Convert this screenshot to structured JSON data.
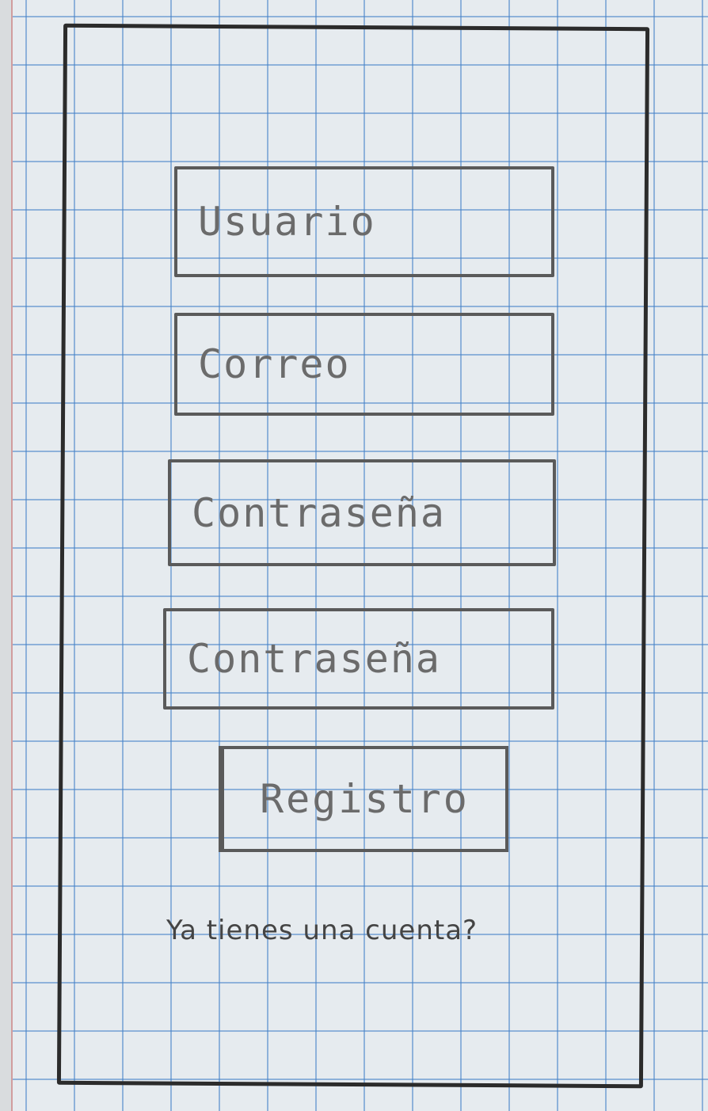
{
  "form": {
    "fields": [
      {
        "placeholder": "Usuario",
        "value": ""
      },
      {
        "placeholder": "Correo",
        "value": ""
      },
      {
        "placeholder": "Contraseña",
        "value": ""
      },
      {
        "placeholder": "Contraseña",
        "value": ""
      }
    ],
    "submit_label": "Registro",
    "login_link": "Ya tienes una cuenta?"
  },
  "colors": {
    "paper": "#e6ebef",
    "grid": "#4682c8",
    "frame": "#2b2b2b",
    "pencil": "#6b6b6b"
  }
}
